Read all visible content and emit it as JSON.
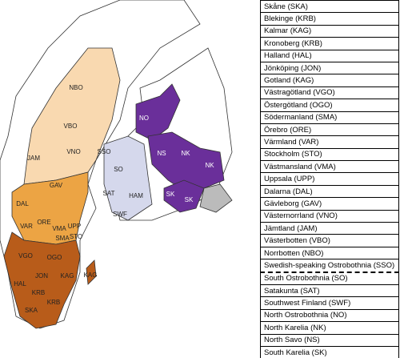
{
  "map": {
    "labels": [
      "NBO",
      "VBO",
      "VNO",
      "JAM",
      "GAV",
      "DAL",
      "SSO",
      "SO",
      "SAT",
      "HAM",
      "SWF",
      "NO",
      "NS",
      "NK",
      "NK",
      "SK",
      "SK",
      "VAR",
      "ORE",
      "VMA",
      "UPP",
      "STO",
      "SMA",
      "VGO",
      "OGO",
      "JON",
      "KAG",
      "KAG",
      "HAL",
      "KRB",
      "KRB",
      "SKA"
    ]
  },
  "table": {
    "rows": [
      "Skåne (SKA)",
      "Blekinge (KRB)",
      "Kalmar (KAG)",
      "Kronoberg (KRB)",
      "Halland (HAL)",
      "Jönköping (JON)",
      "Gotland (KAG)",
      "Västragötland (VGO)",
      "Östergötland (OGO)",
      "Södermanland (SMA)",
      "Örebro (ORE)",
      "Värmland (VAR)",
      "Stockholm (STO)",
      "Västmansland (VMA)",
      "Uppsala (UPP)",
      "Dalarna (DAL)",
      "Gävleborg (GAV)",
      "Västernorrland (VNO)",
      "Jämtland (JAM)",
      "Västerbotten (VBO)",
      "Norrbotten (NBO)",
      "Swedish-speaking Ostrobothnia (SSO)",
      "South Ostrobothnia (SO)",
      "Satakunta (SAT)",
      "Southwest Finland (SWF)",
      "North Ostrobothnia (NO)",
      "North Karelia (NK)",
      "North Savo (NS)",
      "South Karelia (SK)"
    ]
  }
}
